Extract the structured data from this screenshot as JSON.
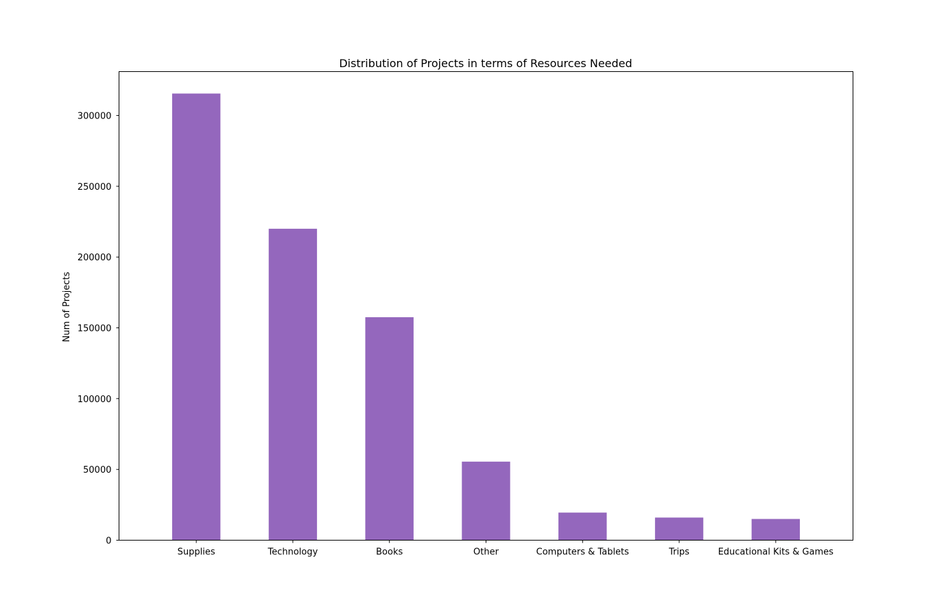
{
  "chart_data": {
    "type": "bar",
    "title": "Distribution of Projects in terms of Resources Needed",
    "xlabel": "",
    "ylabel": "Num of Projects",
    "categories": [
      "Supplies",
      "Technology",
      "Books",
      "Other",
      "Computers & Tablets",
      "Trips",
      "Educational Kits & Games"
    ],
    "values": [
      315500,
      220000,
      157500,
      55500,
      19500,
      16000,
      15000
    ],
    "ylim": [
      0,
      331000
    ],
    "yticks": [
      0,
      50000,
      100000,
      150000,
      200000,
      250000,
      300000
    ],
    "ytick_labels": [
      "0",
      "50000",
      "100000",
      "150000",
      "200000",
      "250000",
      "300000"
    ],
    "bar_color": "#9467bd",
    "grid": false,
    "legend": "none"
  }
}
